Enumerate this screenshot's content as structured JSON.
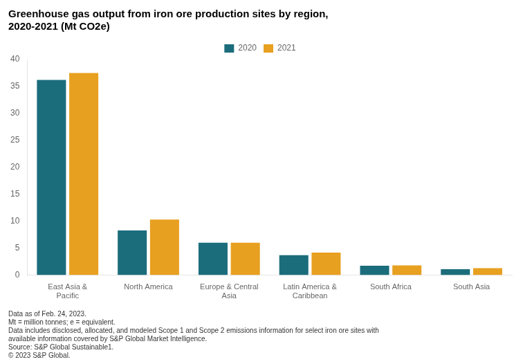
{
  "chart_data": {
    "type": "bar",
    "title": "Greenhouse gas output from iron ore production sites by region,\n2020-2021 (Mt CO2e)",
    "categories": [
      "East Asia &\nPacific",
      "North America",
      "Europe & Central\nAsia",
      "Latin America &\nCaribbean",
      "South Africa",
      "South Asia"
    ],
    "series": [
      {
        "name": "2020",
        "color": "#1b6d7c",
        "values": [
          36.2,
          8.3,
          6.0,
          3.7,
          1.75,
          1.1
        ]
      },
      {
        "name": "2021",
        "color": "#e8a020",
        "values": [
          37.5,
          10.3,
          6.0,
          4.2,
          1.8,
          1.3
        ]
      }
    ],
    "ylim": [
      0,
      40
    ],
    "yticks": [
      0,
      5,
      10,
      15,
      20,
      25,
      30,
      35,
      40
    ],
    "grid": false,
    "legend": "top",
    "footnote": [
      "Data as of Feb. 24, 2023.",
      "Mt = million tonnes; e = equivalent.",
      "Data includes disclosed, allocated, and modeled Scope 1 and Scope 2 emissions information for select iron ore sites with",
      "available information covered by S&P Global Market Intelligence.",
      "Source: S&P Global Sustainable1.",
      "© 2023 S&P Global."
    ]
  }
}
